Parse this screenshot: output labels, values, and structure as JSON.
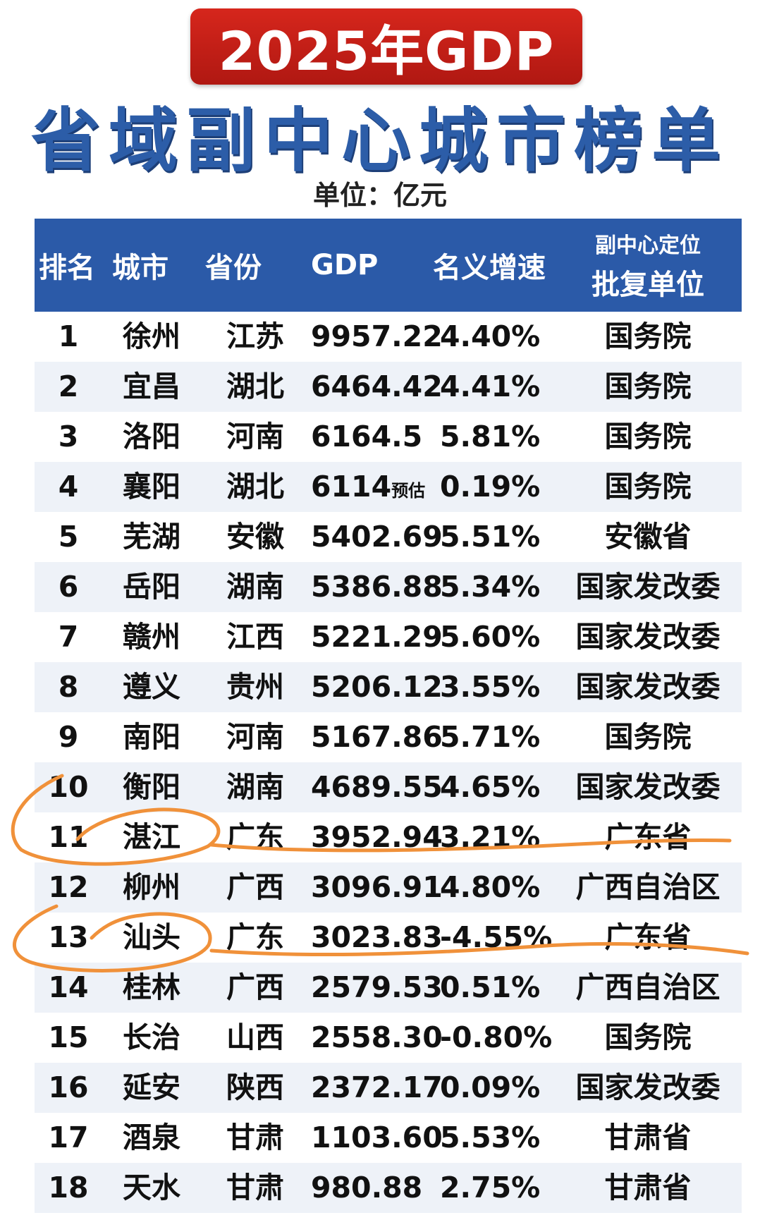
{
  "header": {
    "badge": "2025年GDP",
    "title": "省域副中心城市榜单",
    "unit": "单位：亿元"
  },
  "columns": {
    "rank": "排名",
    "city": "城市",
    "province": "省份",
    "gdp": "GDP",
    "growth": "名义增速",
    "org_line1": "副中心定位",
    "org_line2": "批复单位"
  },
  "rows": [
    {
      "rank": "1",
      "city": "徐州",
      "province": "江苏",
      "gdp": "9957.22",
      "gdp_note": "",
      "growth": "4.40%",
      "org": "国务院"
    },
    {
      "rank": "2",
      "city": "宜昌",
      "province": "湖北",
      "gdp": "6464.42",
      "gdp_note": "",
      "growth": "4.41%",
      "org": "国务院"
    },
    {
      "rank": "3",
      "city": "洛阳",
      "province": "河南",
      "gdp": "6164.5",
      "gdp_note": "",
      "growth": "5.81%",
      "org": "国务院"
    },
    {
      "rank": "4",
      "city": "襄阳",
      "province": "湖北",
      "gdp": "6114",
      "gdp_note": "预估",
      "growth": "0.19%",
      "org": "国务院"
    },
    {
      "rank": "5",
      "city": "芜湖",
      "province": "安徽",
      "gdp": "5402.69",
      "gdp_note": "",
      "growth": "5.51%",
      "org": "安徽省"
    },
    {
      "rank": "6",
      "city": "岳阳",
      "province": "湖南",
      "gdp": "5386.88",
      "gdp_note": "",
      "growth": "5.34%",
      "org": "国家发改委"
    },
    {
      "rank": "7",
      "city": "赣州",
      "province": "江西",
      "gdp": "5221.29",
      "gdp_note": "",
      "growth": "5.60%",
      "org": "国家发改委"
    },
    {
      "rank": "8",
      "city": "遵义",
      "province": "贵州",
      "gdp": "5206.12",
      "gdp_note": "",
      "growth": "3.55%",
      "org": "国家发改委"
    },
    {
      "rank": "9",
      "city": "南阳",
      "province": "河南",
      "gdp": "5167.86",
      "gdp_note": "",
      "growth": "5.71%",
      "org": "国务院"
    },
    {
      "rank": "10",
      "city": "衡阳",
      "province": "湖南",
      "gdp": "4689.55",
      "gdp_note": "",
      "growth": "4.65%",
      "org": "国家发改委"
    },
    {
      "rank": "11",
      "city": "湛江",
      "province": "广东",
      "gdp": "3952.94",
      "gdp_note": "",
      "growth": "3.21%",
      "org": "广东省"
    },
    {
      "rank": "12",
      "city": "柳州",
      "province": "广西",
      "gdp": "3096.91",
      "gdp_note": "",
      "growth": "4.80%",
      "org": "广西自治区"
    },
    {
      "rank": "13",
      "city": "汕头",
      "province": "广东",
      "gdp": "3023.83",
      "gdp_note": "",
      "growth": "-4.55%",
      "org": "广东省"
    },
    {
      "rank": "14",
      "city": "桂林",
      "province": "广西",
      "gdp": "2579.53",
      "gdp_note": "",
      "growth": "0.51%",
      "org": "广西自治区"
    },
    {
      "rank": "15",
      "city": "长治",
      "province": "山西",
      "gdp": "2558.30",
      "gdp_note": "",
      "growth": "-0.80%",
      "org": "国务院"
    },
    {
      "rank": "16",
      "city": "延安",
      "province": "陕西",
      "gdp": "2372.17",
      "gdp_note": "",
      "growth": "0.09%",
      "org": "国家发改委"
    },
    {
      "rank": "17",
      "city": "酒泉",
      "province": "甘肃",
      "gdp": "1103.60",
      "gdp_note": "",
      "growth": "5.53%",
      "org": "甘肃省"
    },
    {
      "rank": "18",
      "city": "天水",
      "province": "甘肃",
      "gdp": "980.88",
      "gdp_note": "",
      "growth": "2.75%",
      "org": "甘肃省"
    }
  ],
  "colors": {
    "badge_red": "#c81f17",
    "title_blue": "#2c5da8",
    "header_blue": "#2b5aa8",
    "annotation_orange": "#f0913a"
  }
}
